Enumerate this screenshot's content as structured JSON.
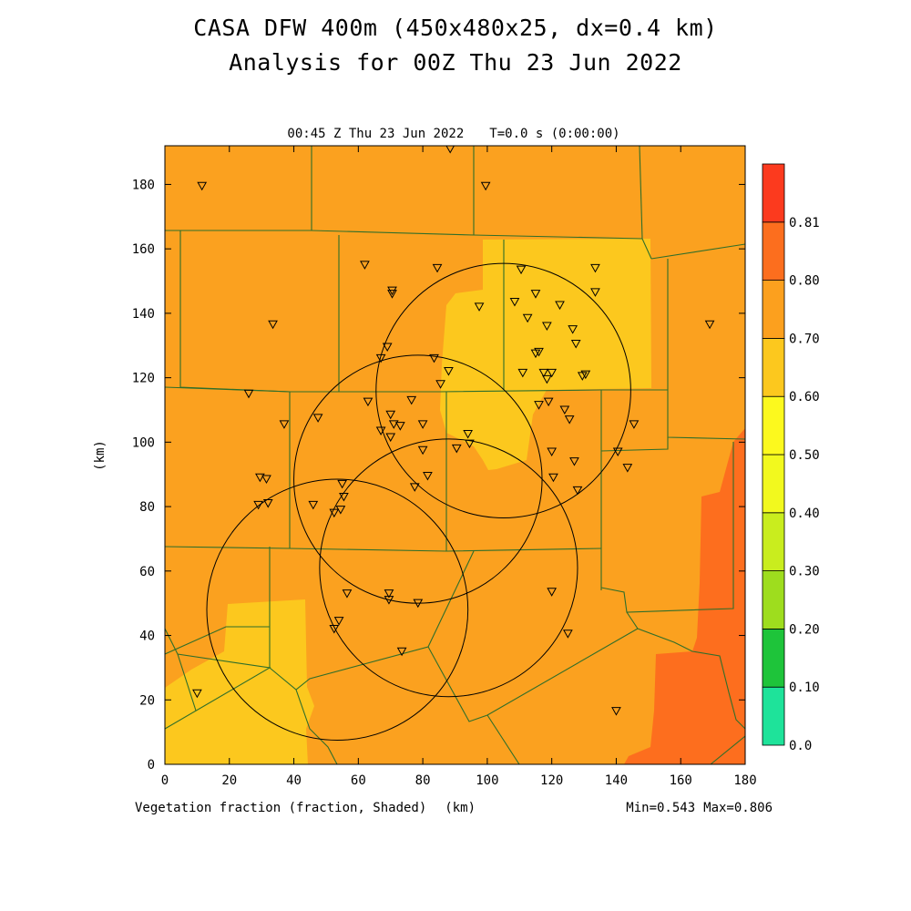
{
  "header": {
    "title_line1": "CASA DFW 400m (450x480x25, dx=0.4 km)",
    "title_line2": "Analysis for 00Z Thu 23 Jun 2022"
  },
  "plot": {
    "subtitle_time": "00:45 Z Thu 23 Jun 2022",
    "subtitle_t": "T=0.0 s (0:00:00)",
    "field_label": "Vegetation fraction (fraction, Shaded)",
    "x_unit_label": "(km)",
    "y_unit_label": "(km)",
    "min_label": "Min=0.543",
    "max_label": "Max=0.806"
  },
  "chart_data": {
    "type": "heatmap",
    "xlabel": "(km)",
    "ylabel": "(km)",
    "xlim": [
      0,
      180
    ],
    "ylim": [
      0,
      192
    ],
    "x_ticks": [
      0,
      20,
      40,
      60,
      80,
      100,
      120,
      140,
      160,
      180
    ],
    "y_ticks": [
      0,
      20,
      40,
      60,
      80,
      100,
      120,
      140,
      160,
      180
    ],
    "colorbar": {
      "levels": [
        "0.0",
        "0.10",
        "0.20",
        "0.30",
        "0.40",
        "0.50",
        "0.60",
        "0.70",
        "0.80",
        "0.81"
      ],
      "colors": [
        "#1ee39a",
        "#1ec43a",
        "#9edd1e",
        "#c9ed1e",
        "#f2f91e",
        "#fcf91e",
        "#fcc81e",
        "#fca01e",
        "#fc6e1e",
        "#fc3a1e"
      ]
    },
    "min": 0.543,
    "max": 0.806,
    "field_colors": {
      "base": "#fba11f",
      "yellow": "#fcc81e",
      "red": "#fd6e1e"
    },
    "radar_rings": [
      {
        "cx": 78.5,
        "cy": 88.5,
        "r": 38.5
      },
      {
        "cx": 105,
        "cy": 116,
        "r": 39.5
      },
      {
        "cx": 88,
        "cy": 61,
        "r": 40
      },
      {
        "cx": 53.5,
        "cy": 48,
        "r": 40.5
      }
    ],
    "stations": [
      [
        11.5,
        179.5
      ],
      [
        88.5,
        191
      ],
      [
        99.5,
        179.5
      ],
      [
        62,
        155
      ],
      [
        70.5,
        146
      ],
      [
        70.5,
        147
      ],
      [
        84.5,
        154
      ],
      [
        33.5,
        136.5
      ],
      [
        110.5,
        153.5
      ],
      [
        133.5,
        154
      ],
      [
        115,
        146
      ],
      [
        108.5,
        143.5
      ],
      [
        97.5,
        142
      ],
      [
        133.5,
        146.5
      ],
      [
        122.5,
        142.5
      ],
      [
        112.5,
        138.5
      ],
      [
        118.5,
        136
      ],
      [
        126.5,
        135
      ],
      [
        127.5,
        130.5
      ],
      [
        116,
        128
      ],
      [
        115,
        127.5
      ],
      [
        67,
        126
      ],
      [
        69,
        129.5
      ],
      [
        83.5,
        126
      ],
      [
        88,
        122
      ],
      [
        111,
        121.5
      ],
      [
        117.5,
        121.5
      ],
      [
        120,
        121.5
      ],
      [
        130.5,
        121
      ],
      [
        129.5,
        120.5
      ],
      [
        118.5,
        119.5
      ],
      [
        85.5,
        118
      ],
      [
        169,
        136.5
      ],
      [
        26,
        115
      ],
      [
        76.5,
        113
      ],
      [
        63,
        112.5
      ],
      [
        116,
        111.5
      ],
      [
        119,
        112.5
      ],
      [
        124,
        110
      ],
      [
        125.5,
        107
      ],
      [
        70,
        108.5
      ],
      [
        71,
        105.5
      ],
      [
        73,
        105
      ],
      [
        67,
        103.5
      ],
      [
        80,
        105.5
      ],
      [
        37,
        105.5
      ],
      [
        47.5,
        107.5
      ],
      [
        145.5,
        105.5
      ],
      [
        70,
        101.5
      ],
      [
        94,
        102.5
      ],
      [
        94.5,
        99.5
      ],
      [
        90.5,
        98
      ],
      [
        80,
        97.5
      ],
      [
        140.5,
        97
      ],
      [
        120,
        97
      ],
      [
        127,
        94
      ],
      [
        143.5,
        92
      ],
      [
        29.5,
        89
      ],
      [
        31.5,
        88.5
      ],
      [
        81.5,
        89.5
      ],
      [
        120.5,
        89
      ],
      [
        55,
        87
      ],
      [
        77.5,
        86
      ],
      [
        128,
        85
      ],
      [
        55.5,
        83
      ],
      [
        29,
        80.5
      ],
      [
        32,
        81
      ],
      [
        46,
        80.5
      ],
      [
        54.5,
        79
      ],
      [
        52.5,
        78
      ],
      [
        56.5,
        53
      ],
      [
        69.5,
        53
      ],
      [
        69.5,
        51
      ],
      [
        78.5,
        50
      ],
      [
        120,
        53.5
      ],
      [
        125,
        40.5
      ],
      [
        54,
        44.5
      ],
      [
        52.5,
        42
      ],
      [
        73.5,
        35
      ],
      [
        10,
        22
      ],
      [
        140,
        16.5
      ]
    ]
  }
}
